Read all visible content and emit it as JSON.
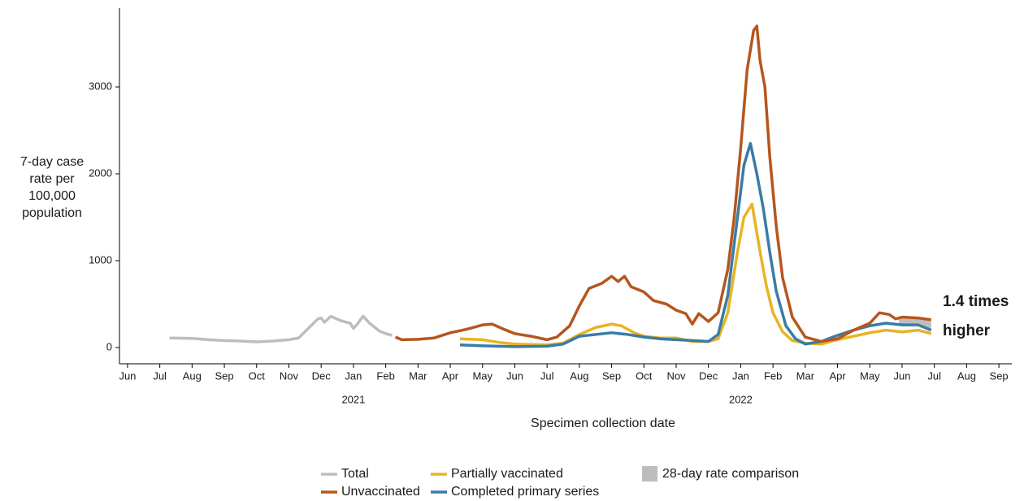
{
  "chart_data": {
    "type": "line",
    "xlabel": "Specimen collection date",
    "ylabel_lines": [
      "7-day case",
      "rate per",
      "100,000",
      "population"
    ],
    "xlim": [
      -0.25,
      27.4
    ],
    "ylim": [
      -187,
      3907
    ],
    "yticks": [
      0,
      1000,
      2000,
      3000
    ],
    "xticks": [
      {
        "value": 0,
        "label": "Jun"
      },
      {
        "value": 1,
        "label": "Jul"
      },
      {
        "value": 2,
        "label": "Aug"
      },
      {
        "value": 3,
        "label": "Sep"
      },
      {
        "value": 4,
        "label": "Oct"
      },
      {
        "value": 5,
        "label": "Nov"
      },
      {
        "value": 6,
        "label": "Dec"
      },
      {
        "value": 7,
        "label": "Jan"
      },
      {
        "value": 8,
        "label": "Feb"
      },
      {
        "value": 9,
        "label": "Mar"
      },
      {
        "value": 10,
        "label": "Apr"
      },
      {
        "value": 11,
        "label": "May"
      },
      {
        "value": 12,
        "label": "Jun"
      },
      {
        "value": 13,
        "label": "Jul"
      },
      {
        "value": 14,
        "label": "Aug"
      },
      {
        "value": 15,
        "label": "Sep"
      },
      {
        "value": 16,
        "label": "Oct"
      },
      {
        "value": 17,
        "label": "Nov"
      },
      {
        "value": 18,
        "label": "Dec"
      },
      {
        "value": 19,
        "label": "Jan"
      },
      {
        "value": 20,
        "label": "Feb"
      },
      {
        "value": 21,
        "label": "Mar"
      },
      {
        "value": 22,
        "label": "Apr"
      },
      {
        "value": 23,
        "label": "May"
      },
      {
        "value": 24,
        "label": "Jun"
      },
      {
        "value": 25,
        "label": "Jul"
      },
      {
        "value": 26,
        "label": "Aug"
      },
      {
        "value": 27,
        "label": "Sep"
      }
    ],
    "x_year_labels": [
      {
        "value": 7,
        "label": "2021"
      },
      {
        "value": 19,
        "label": "2022"
      }
    ],
    "grid": false,
    "series": [
      {
        "name": "Total",
        "color": "#bdbdbd",
        "x": [
          1.3,
          2,
          2.5,
          3,
          3.5,
          4,
          4.5,
          5,
          5.3,
          5.6,
          5.9,
          6.0,
          6.1,
          6.3,
          6.6,
          6.9,
          7.0,
          7.1,
          7.3,
          7.5,
          7.8,
          8.0,
          8.2
        ],
        "values": [
          110,
          105,
          90,
          80,
          75,
          65,
          75,
          90,
          110,
          220,
          330,
          340,
          290,
          360,
          310,
          280,
          220,
          260,
          360,
          280,
          190,
          160,
          140
        ]
      },
      {
        "name": "Unvaccinated",
        "color": "#b5561f",
        "x": [
          8.3,
          8.5,
          9,
          9.5,
          10,
          10.5,
          11,
          11.3,
          11.6,
          12,
          12.5,
          13,
          13.3,
          13.7,
          14,
          14.3,
          14.7,
          15,
          15.2,
          15.4,
          15.6,
          16,
          16.3,
          16.7,
          17,
          17.3,
          17.5,
          17.7,
          18,
          18.3,
          18.6,
          18.8,
          19.0,
          19.2,
          19.4,
          19.5,
          19.6,
          19.75,
          19.9,
          20.1,
          20.3,
          20.6,
          21,
          21.5,
          22,
          22.5,
          23,
          23.3,
          23.6,
          23.8,
          24,
          24.5,
          24.9
        ],
        "values": [
          120,
          90,
          95,
          110,
          170,
          210,
          260,
          270,
          220,
          160,
          130,
          90,
          120,
          250,
          480,
          680,
          740,
          820,
          760,
          820,
          700,
          640,
          540,
          500,
          430,
          390,
          270,
          390,
          300,
          400,
          900,
          1500,
          2300,
          3200,
          3650,
          3700,
          3300,
          3000,
          2200,
          1400,
          800,
          350,
          120,
          70,
          100,
          200,
          280,
          400,
          380,
          330,
          350,
          340,
          320
        ]
      },
      {
        "name": "Partially vaccinated",
        "color": "#e8b425",
        "x": [
          10.3,
          11,
          11.5,
          12,
          13,
          13.5,
          14,
          14.5,
          15,
          15.3,
          15.7,
          16,
          16.5,
          17,
          17.5,
          18,
          18.3,
          18.6,
          18.9,
          19.1,
          19.35,
          19.6,
          19.8,
          20,
          20.3,
          20.6,
          21,
          21.5,
          22,
          22.5,
          23,
          23.5,
          24,
          24.5,
          24.9
        ],
        "values": [
          100,
          90,
          60,
          40,
          30,
          50,
          150,
          230,
          270,
          250,
          170,
          130,
          110,
          110,
          70,
          70,
          100,
          400,
          1100,
          1500,
          1650,
          1100,
          700,
          400,
          180,
          80,
          50,
          40,
          90,
          130,
          170,
          200,
          180,
          200,
          160
        ]
      },
      {
        "name": "Completed primary series",
        "color": "#3a7ca5",
        "x": [
          10.3,
          11,
          12,
          13,
          13.5,
          14,
          14.5,
          15,
          15.5,
          16,
          16.5,
          17,
          17.5,
          18,
          18.3,
          18.6,
          18.9,
          19.1,
          19.3,
          19.5,
          19.7,
          19.9,
          20.1,
          20.4,
          20.7,
          21,
          21.5,
          22,
          22.5,
          23,
          23.5,
          24,
          24.5,
          24.9
        ],
        "values": [
          30,
          20,
          10,
          15,
          40,
          130,
          150,
          170,
          150,
          120,
          100,
          90,
          80,
          70,
          150,
          600,
          1500,
          2100,
          2350,
          2000,
          1600,
          1100,
          650,
          250,
          100,
          40,
          70,
          140,
          200,
          250,
          280,
          260,
          260,
          200
        ]
      }
    ],
    "shaded_region": {
      "name": "28-day rate comparison",
      "color": "#bdbdbd",
      "x": [
        23.9,
        24.9
      ]
    },
    "annotation_lines": [
      "1.4 times",
      "higher"
    ]
  }
}
